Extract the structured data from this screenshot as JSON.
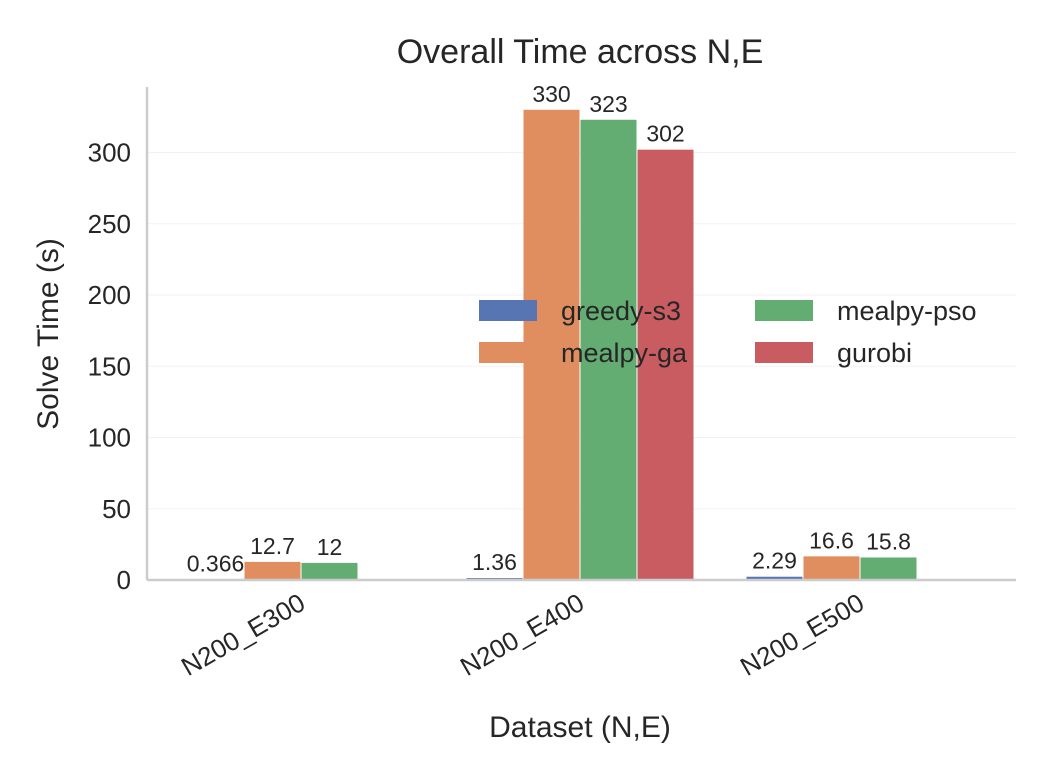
{
  "chart_data": {
    "type": "bar",
    "title": "Overall Time across N,E",
    "xlabel": "Dataset (N,E)",
    "ylabel": "Solve Time (s)",
    "categories": [
      "N200_E300",
      "N200_E400",
      "N200_E500"
    ],
    "ylim": [
      0,
      346
    ],
    "yticks": [
      0,
      50,
      100,
      150,
      200,
      250,
      300
    ],
    "grid": true,
    "legend_position": "center-right",
    "legend_columns": 2,
    "series": [
      {
        "name": "greedy-s3",
        "color": "#5875b3",
        "values": [
          0.366,
          1.36,
          2.29
        ],
        "labels": [
          "0.366",
          "1.36",
          "2.29"
        ]
      },
      {
        "name": "mealpy-ga",
        "color": "#e08e5f",
        "values": [
          12.7,
          330,
          16.6
        ],
        "labels": [
          "12.7",
          "330",
          "16.6"
        ]
      },
      {
        "name": "mealpy-pso",
        "color": "#63ad72",
        "values": [
          12,
          323,
          15.8
        ],
        "labels": [
          "12",
          "323",
          "15.8"
        ]
      },
      {
        "name": "gurobi",
        "color": "#c95c61",
        "values": [
          null,
          302,
          null
        ],
        "labels": [
          null,
          "302",
          null
        ]
      }
    ]
  }
}
